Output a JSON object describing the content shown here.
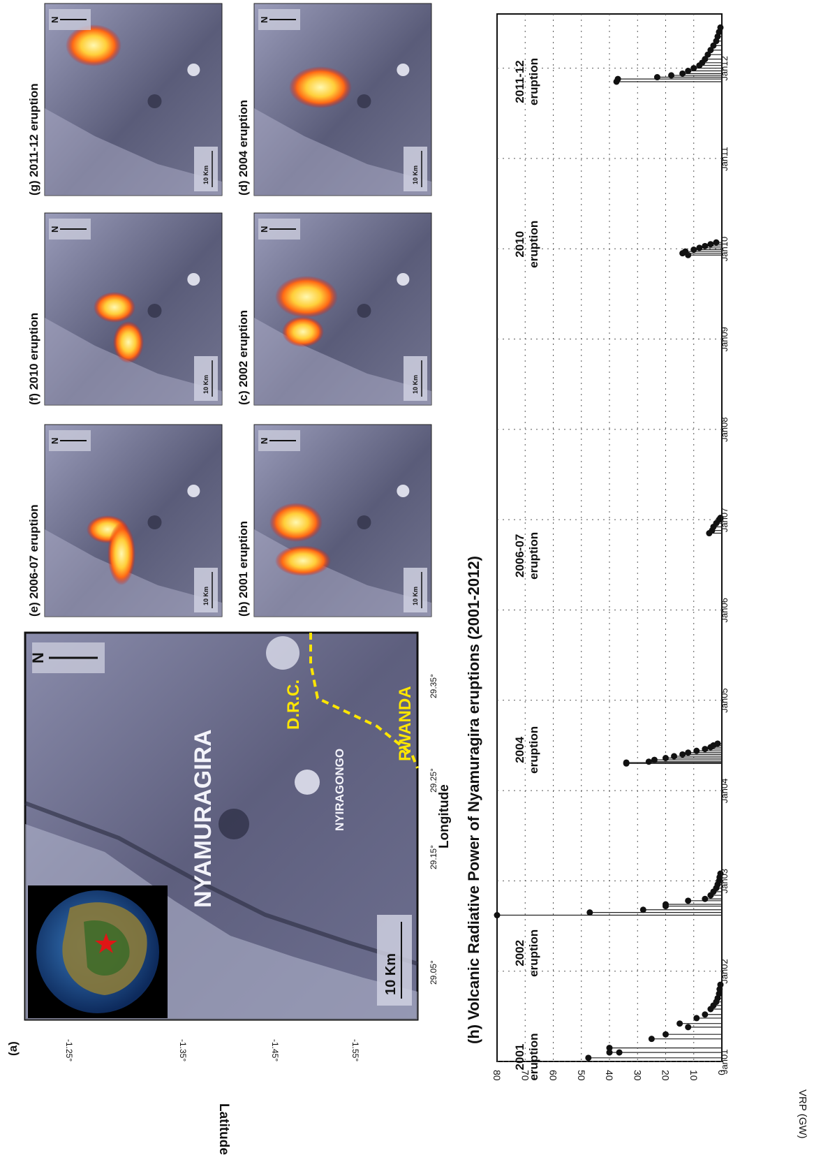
{
  "panels": {
    "a": {
      "label": "(a)",
      "scale": "10 Km",
      "north": "N",
      "place1": "NYAMURAGIRA",
      "place2": "NYIRAGONGO",
      "country1": "D.R.C.",
      "country2": "RWANDA",
      "xlabel": "Longitude",
      "ylabel": "Latitude",
      "lon_ticks": [
        "29.05°",
        "29.15°",
        "29.25°",
        "29.35°"
      ],
      "lat_ticks": [
        "-1.25°",
        "-1.35°",
        "-1.45°",
        "-1.55°"
      ]
    },
    "b": {
      "title": "(b) 2001 eruption"
    },
    "c": {
      "title": "(c) 2002 eruption"
    },
    "d": {
      "title": "(d) 2004 eruption"
    },
    "e": {
      "title": "(e) 2006-07 eruption"
    },
    "f": {
      "title": "(f) 2010   eruption"
    },
    "g": {
      "title": "(g) 2011-12  eruption"
    },
    "small_scale": "10 Km",
    "small_north": "N"
  },
  "colors": {
    "map_bg": "#5e5f7e",
    "map_light": "#b9bcd6",
    "lava_hot": "#fff6a0",
    "lava_mid": "#ff7a18",
    "lava_edge": "#d81010",
    "border": "#ffe600",
    "marker": "#111111",
    "star": "#e01515"
  },
  "chart_data": {
    "type": "scatter",
    "title": "(h) Volcanic Radiative Power of Nyamuragira eruptions (2001-2012)",
    "ylabel": "VRP (GW)",
    "xlabel": "",
    "ylim": [
      0,
      80
    ],
    "yticks": [
      0,
      10,
      20,
      30,
      40,
      50,
      60,
      70,
      80
    ],
    "xticks": [
      "Jan01",
      "Jan02",
      "Jan03",
      "Jan04",
      "Jan05",
      "Jan06",
      "Jan07",
      "Jan08",
      "Jan09",
      "Jan10",
      "Jan11",
      "Jan12"
    ],
    "grid": true,
    "annotations": [
      {
        "text": "2001\neruption",
        "x": 2001.05
      },
      {
        "text": "2002\neruption",
        "x": 2002.2
      },
      {
        "text": "2004\neruption",
        "x": 2004.45
      },
      {
        "text": "2006-07\neruption",
        "x": 2006.6
      },
      {
        "text": "2010\neruption",
        "x": 2010.05
      },
      {
        "text": "2011-12\neruption",
        "x": 2011.85
      }
    ],
    "series": [
      {
        "points": [
          [
            2001.04,
            47.5
          ],
          [
            2001.1,
            40.0
          ],
          [
            2001.1,
            36.5
          ],
          [
            2001.15,
            40.0
          ],
          [
            2001.25,
            25.0
          ],
          [
            2001.3,
            20.0
          ],
          [
            2001.38,
            12.0
          ],
          [
            2001.42,
            15.0
          ],
          [
            2001.48,
            9.0
          ],
          [
            2001.52,
            6.0
          ],
          [
            2001.58,
            4.0
          ],
          [
            2001.62,
            3.0
          ],
          [
            2001.66,
            2.0
          ],
          [
            2001.7,
            1.5
          ],
          [
            2001.75,
            1.0
          ],
          [
            2001.8,
            0.8
          ],
          [
            2001.85,
            0.5
          ]
        ]
      },
      {
        "points": [
          [
            2002.62,
            80.0
          ],
          [
            2002.65,
            47.0
          ],
          [
            2002.68,
            28.0
          ],
          [
            2002.72,
            20.0
          ],
          [
            2002.74,
            20.0
          ],
          [
            2002.78,
            12.0
          ],
          [
            2002.8,
            6.0
          ],
          [
            2002.84,
            4.0
          ],
          [
            2002.88,
            3.0
          ],
          [
            2002.92,
            2.0
          ],
          [
            2002.96,
            1.5
          ],
          [
            2003.0,
            1.0
          ],
          [
            2003.04,
            0.8
          ],
          [
            2003.08,
            0.5
          ]
        ]
      },
      {
        "points": [
          [
            2004.3,
            34.0
          ],
          [
            2004.31,
            34.0
          ],
          [
            2004.32,
            26.0
          ],
          [
            2004.34,
            24.0
          ],
          [
            2004.36,
            20.0
          ],
          [
            2004.38,
            17.0
          ],
          [
            2004.4,
            14.0
          ],
          [
            2004.42,
            12.0
          ],
          [
            2004.44,
            9.0
          ],
          [
            2004.46,
            6.0
          ],
          [
            2004.48,
            4.0
          ],
          [
            2004.5,
            3.0
          ],
          [
            2004.52,
            1.5
          ]
        ]
      },
      {
        "points": [
          [
            2006.85,
            4.5
          ],
          [
            2006.88,
            3.5
          ],
          [
            2006.92,
            3.0
          ],
          [
            2006.96,
            2.0
          ],
          [
            2007.0,
            1.0
          ],
          [
            2007.02,
            0.5
          ]
        ]
      },
      {
        "points": [
          [
            2009.93,
            12.0
          ],
          [
            2009.95,
            14.0
          ],
          [
            2009.97,
            13.0
          ],
          [
            2009.99,
            10.0
          ],
          [
            2010.01,
            8.0
          ],
          [
            2010.03,
            6.0
          ],
          [
            2010.05,
            4.0
          ],
          [
            2010.07,
            2.0
          ]
        ]
      },
      {
        "points": [
          [
            2011.85,
            37.5
          ],
          [
            2011.88,
            37.0
          ],
          [
            2011.9,
            23.0
          ],
          [
            2011.92,
            18.0
          ],
          [
            2011.94,
            14.0
          ],
          [
            2011.97,
            12.0
          ],
          [
            2012.0,
            10.0
          ],
          [
            2012.03,
            8.0
          ],
          [
            2012.06,
            7.0
          ],
          [
            2012.1,
            6.0
          ],
          [
            2012.15,
            5.0
          ],
          [
            2012.2,
            4.0
          ],
          [
            2012.25,
            3.0
          ],
          [
            2012.3,
            2.0
          ],
          [
            2012.35,
            1.5
          ],
          [
            2012.4,
            1.0
          ],
          [
            2012.45,
            0.5
          ]
        ]
      }
    ]
  }
}
